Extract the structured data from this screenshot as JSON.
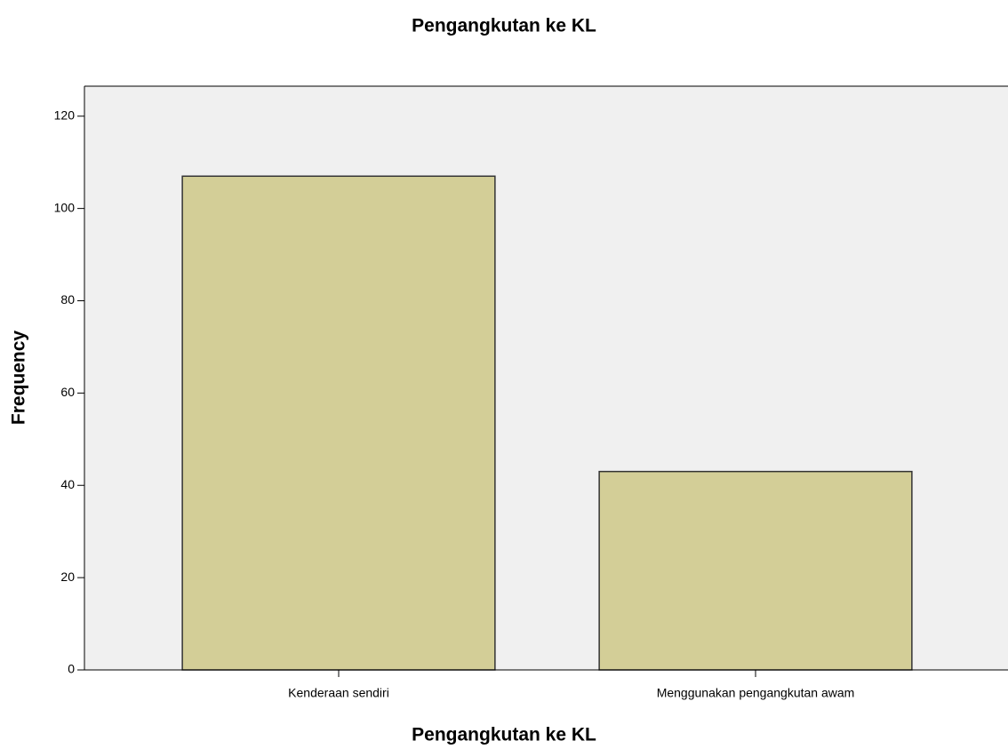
{
  "chart_data": {
    "type": "bar",
    "title": "Pengangkutan ke KL",
    "x_label": "Pengangkutan ke KL",
    "y_label": "Frequency",
    "categories": [
      "Kenderaan sendiri",
      "Menggunakan pengangkutan awam"
    ],
    "values": [
      107,
      43
    ],
    "color": "#d3ce97",
    "ylim": [
      0,
      126.5
    ],
    "yticks": [
      0,
      20,
      40,
      60,
      80,
      100,
      120
    ],
    "grid": false
  }
}
